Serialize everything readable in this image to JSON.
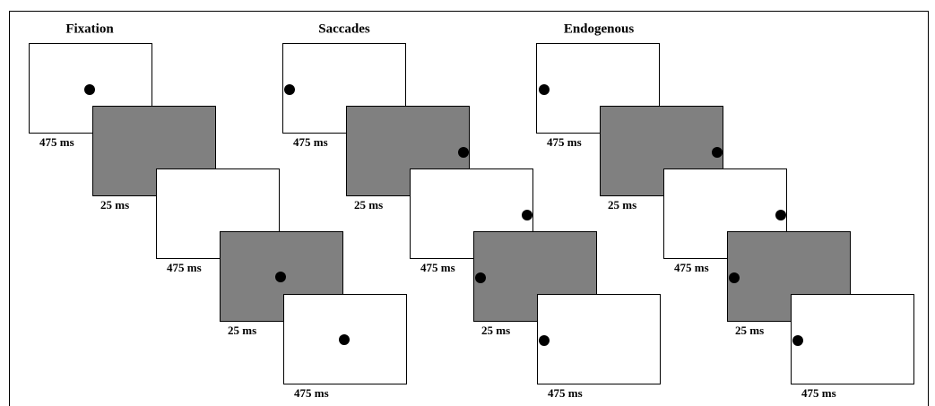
{
  "panels": [
    {
      "title": "Fixation",
      "frames": [
        {
          "duration": "475 ms"
        },
        {
          "duration": "25 ms"
        },
        {
          "duration": "475 ms"
        },
        {
          "duration": "25 ms"
        },
        {
          "duration": "475 ms"
        }
      ]
    },
    {
      "title": "Saccades",
      "frames": [
        {
          "duration": "475 ms"
        },
        {
          "duration": "25 ms"
        },
        {
          "duration": "475 ms"
        },
        {
          "duration": "25 ms"
        },
        {
          "duration": "475 ms"
        }
      ]
    },
    {
      "title": "Endogenous",
      "frames": [
        {
          "duration": "475 ms"
        },
        {
          "duration": "25 ms"
        },
        {
          "duration": "475 ms"
        },
        {
          "duration": "25 ms"
        },
        {
          "duration": "475 ms"
        }
      ]
    }
  ]
}
